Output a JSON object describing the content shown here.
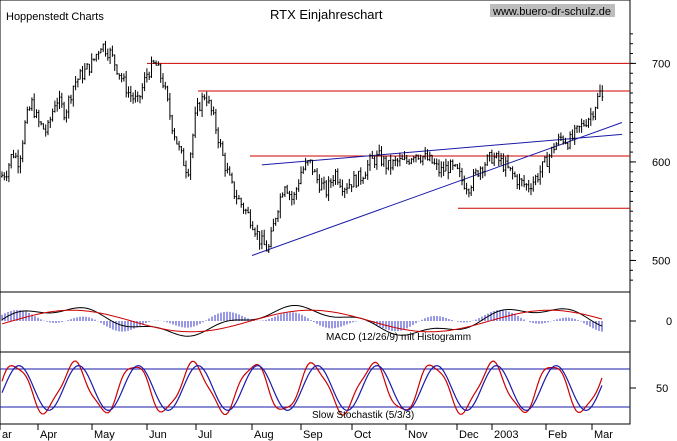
{
  "header": {
    "publisher": "Hoppenstedt Charts",
    "title": "RTX Einjahreschart",
    "website": "www.buero-dr-schulz.de"
  },
  "chart_data": {
    "type": "candlestick",
    "title": "RTX Einjahreschart",
    "months": [
      "ar",
      "Apr",
      "May",
      "Jun",
      "Jul",
      "Aug",
      "Sep",
      "Oct",
      "Nov",
      "Dec",
      "2003",
      "Feb",
      "Mar"
    ],
    "y_ticks": [
      500,
      600,
      700
    ],
    "ylim": [
      470,
      740
    ],
    "price_series": [
      {
        "label": "Mar",
        "v": [
          585,
          590,
          610,
          600,
          640,
          660
        ]
      },
      {
        "label": "Apr",
        "v": [
          640,
          630,
          665,
          650,
          680,
          690
        ]
      },
      {
        "label": "May",
        "v": [
          700,
          720,
          710,
          690,
          670,
          660
        ]
      },
      {
        "label": "Jun",
        "v": [
          690,
          700,
          680,
          640,
          610,
          590
        ]
      },
      {
        "label": "Jul",
        "v": [
          650,
          670,
          640,
          600,
          570,
          555
        ]
      },
      {
        "label": "Aug",
        "v": [
          540,
          520,
          510,
          550,
          580,
          560
        ]
      },
      {
        "label": "Sep",
        "v": [
          590,
          600,
          580,
          570,
          590,
          575
        ]
      },
      {
        "label": "Oct",
        "v": [
          580,
          585,
          600,
          605,
          595,
          600
        ]
      },
      {
        "label": "Nov",
        "v": [
          600,
          610,
          605,
          600,
          590,
          595
        ]
      },
      {
        "label": "Dec",
        "v": [
          590,
          580,
          575,
          585,
          595,
          600
        ]
      },
      {
        "label": "2003",
        "v": [
          605,
          600,
          590,
          580,
          575,
          585
        ]
      },
      {
        "label": "Feb",
        "v": [
          600,
          615,
          625,
          620,
          630,
          640
        ]
      },
      {
        "label": "Mar",
        "v": [
          650,
          660,
          670
        ]
      }
    ],
    "horizontal_levels": [
      700,
      672,
      606,
      553
    ],
    "trendlines": [
      {
        "from_month_index": 5.0,
        "from_value": 505,
        "to_month_index": 12.6,
        "to_value": 640
      },
      {
        "from_month_index": 5.2,
        "from_value": 597,
        "to_month_index": 12.6,
        "to_value": 628
      }
    ],
    "indicators": [
      {
        "name": "MACD (12/26/9) mit Histogramm",
        "y_ticks": [
          0
        ]
      },
      {
        "name": "Slow Stochastik (5/3/3)",
        "y_ticks": [
          50
        ]
      }
    ],
    "colors": {
      "levels": "#cc0000",
      "trend": "#1a1aaa",
      "histogram": "#3333cc",
      "signal": "#cc0000",
      "macd": "#000000",
      "stoch_k": "#cc0000",
      "stoch_d": "#1a1aaa"
    }
  }
}
